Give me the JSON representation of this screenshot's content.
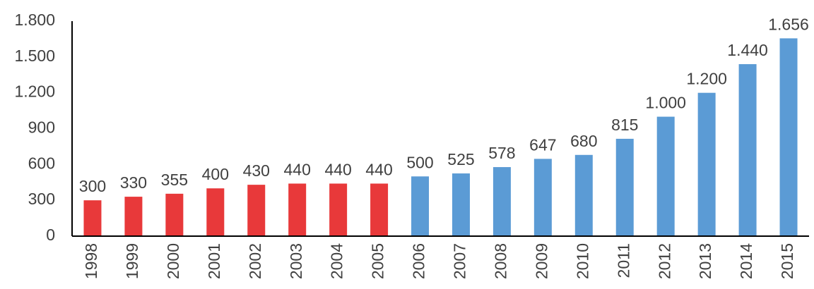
{
  "chart_data": {
    "type": "bar",
    "title": "",
    "xlabel": "",
    "ylabel": "",
    "ylim": [
      0,
      1800
    ],
    "yticks": [
      0,
      300,
      600,
      900,
      1200,
      1500,
      1800
    ],
    "ytick_labels": [
      "0",
      "300",
      "600",
      "900",
      "1.200",
      "1.500",
      "1.800"
    ],
    "grid": false,
    "categories": [
      "1998",
      "1999",
      "2000",
      "2001",
      "2002",
      "2003",
      "2004",
      "2005",
      "2006",
      "2007",
      "2008",
      "2009",
      "2010",
      "2011",
      "2012",
      "2013",
      "2014",
      "2015"
    ],
    "values": [
      300,
      330,
      355,
      400,
      430,
      440,
      440,
      440,
      500,
      525,
      578,
      647,
      680,
      815,
      1000,
      1200,
      1440,
      1656
    ],
    "value_labels": [
      "300",
      "330",
      "355",
      "400",
      "430",
      "440",
      "440",
      "440",
      "500",
      "525",
      "578",
      "647",
      "680",
      "815",
      "1.000",
      "1.200",
      "1.440",
      "1.656"
    ],
    "bar_colors": [
      "#e8393a",
      "#e8393a",
      "#e8393a",
      "#e8393a",
      "#e8393a",
      "#e8393a",
      "#e8393a",
      "#e8393a",
      "#5b9bd5",
      "#5b9bd5",
      "#5b9bd5",
      "#5b9bd5",
      "#5b9bd5",
      "#5b9bd5",
      "#5b9bd5",
      "#5b9bd5",
      "#5b9bd5",
      "#5b9bd5"
    ],
    "axis_color": "#000000",
    "text_color": "#404040"
  }
}
